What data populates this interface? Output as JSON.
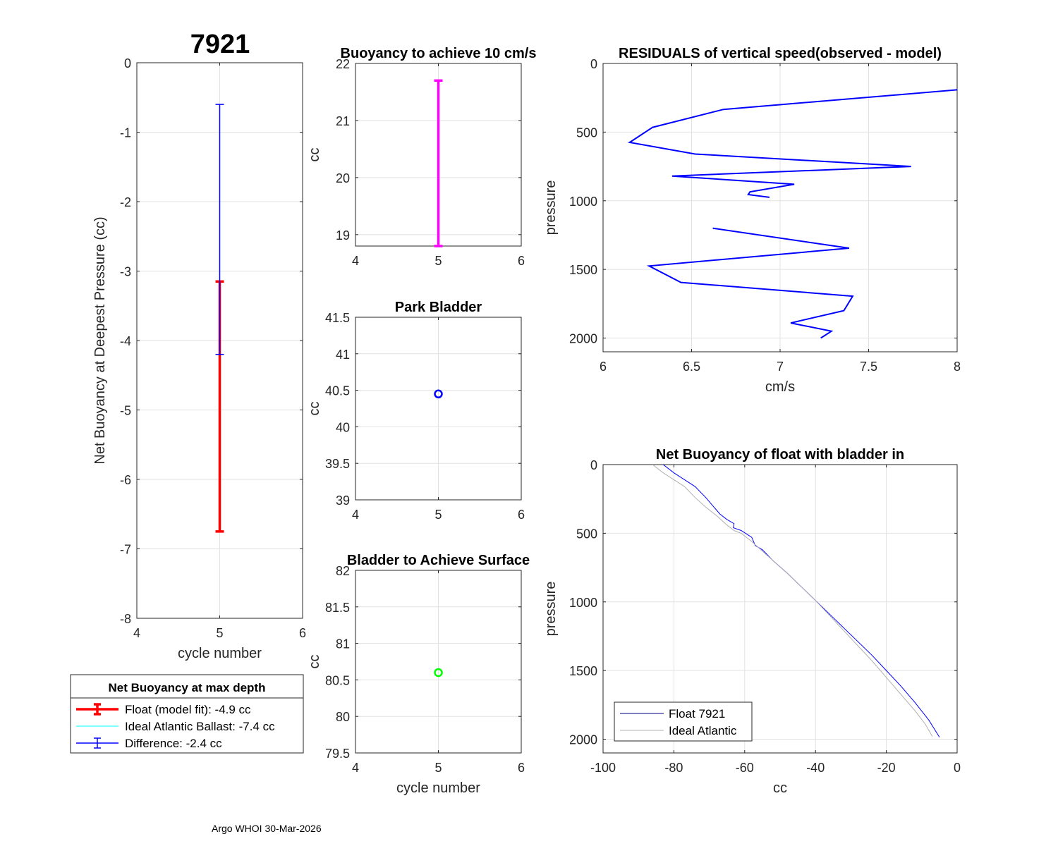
{
  "figure_title": "7921",
  "footer": "Argo WHOI 30-Mar-2026",
  "colors": {
    "red": "#ff0000",
    "blue": "#0000ff",
    "magenta": "#ff00ff",
    "green": "#00ff00",
    "cyan": "#00ffff",
    "navy": "#000080",
    "gray": "#b0b0b0"
  },
  "chart_data": [
    {
      "id": "net-buoyancy-deepest",
      "type": "errorbar",
      "title": "",
      "xlabel": "cycle number",
      "ylabel": "Net Buoyancy at Deepest Pressure (cc)",
      "xlim": [
        4,
        6
      ],
      "ylim": [
        -8,
        0
      ],
      "xticks": [
        4,
        5,
        6
      ],
      "yticks": [
        0,
        -1,
        -2,
        -3,
        -4,
        -5,
        -6,
        -7,
        -8
      ],
      "xtick_labels": [
        "4",
        "5",
        "6"
      ],
      "ytick_labels": [
        "0",
        "-1",
        "-2",
        "-3",
        "-4",
        "-5",
        "-6",
        "-7",
        "-8"
      ],
      "series": [
        {
          "name": "Float (model fit)",
          "x": 5,
          "y": -4.95,
          "low": -6.75,
          "high": -3.15,
          "color": "#ff0000"
        },
        {
          "name": "Difference",
          "x": 5,
          "y": -2.4,
          "low": -4.2,
          "high": -0.6,
          "color": "#0000ff"
        }
      ],
      "legend": {
        "title": "Net Buoyancy at max depth",
        "entries": [
          "Float (model fit):  -4.9 cc",
          "Ideal Atlantic Ballast:  -7.4 cc",
          "Difference:  -2.4 cc"
        ]
      }
    },
    {
      "id": "buoyancy-10cms",
      "type": "errorbar",
      "title": "Buoyancy to achieve 10 cm/s",
      "xlabel": "",
      "ylabel": "cc",
      "xlim": [
        4,
        6
      ],
      "ylim": [
        18.8,
        22
      ],
      "xticks": [
        4,
        5,
        6
      ],
      "yticks": [
        19,
        20,
        21,
        22
      ],
      "xtick_labels": [
        "4",
        "5",
        "6"
      ],
      "ytick_labels": [
        "19",
        "20",
        "21",
        "22"
      ],
      "series": [
        {
          "name": "buoyancy",
          "x": 5,
          "low": 18.8,
          "high": 21.7,
          "color": "#ff00ff"
        }
      ]
    },
    {
      "id": "park-bladder",
      "type": "scatter",
      "title": "Park Bladder",
      "xlabel": "",
      "ylabel": "cc",
      "xlim": [
        4,
        6
      ],
      "ylim": [
        39,
        41.5
      ],
      "xticks": [
        4,
        5,
        6
      ],
      "yticks": [
        39,
        39.5,
        40,
        40.5,
        41,
        41.5
      ],
      "xtick_labels": [
        "4",
        "5",
        "6"
      ],
      "ytick_labels": [
        "39",
        "39.5",
        "40",
        "40.5",
        "41",
        "41.5"
      ],
      "series": [
        {
          "name": "park bladder",
          "x": [
            5
          ],
          "y": [
            40.45
          ],
          "color": "#0000ff"
        }
      ]
    },
    {
      "id": "bladder-surface",
      "type": "scatter",
      "title": "Bladder to Achieve Surface",
      "xlabel": "cycle number",
      "ylabel": "cc",
      "xlim": [
        4,
        6
      ],
      "ylim": [
        79.5,
        82
      ],
      "xticks": [
        4,
        5,
        6
      ],
      "yticks": [
        79.5,
        80,
        80.5,
        81,
        81.5,
        82
      ],
      "xtick_labels": [
        "4",
        "5",
        "6"
      ],
      "ytick_labels": [
        "79.5",
        "80",
        "80.5",
        "81",
        "81.5",
        "82"
      ],
      "series": [
        {
          "name": "surface bladder",
          "x": [
            5
          ],
          "y": [
            80.6
          ],
          "color": "#00ff00"
        }
      ]
    },
    {
      "id": "residuals",
      "type": "line",
      "title": "RESIDUALS of vertical speed(observed - model)",
      "xlabel": "cm/s",
      "ylabel": "pressure",
      "xlim": [
        6,
        8
      ],
      "ylim": [
        0,
        2100
      ],
      "y_reversed": true,
      "xticks": [
        6,
        6.5,
        7,
        7.5,
        8
      ],
      "yticks": [
        0,
        500,
        1000,
        1500,
        2000
      ],
      "xtick_labels": [
        "6",
        "6.5",
        "7",
        "7.5",
        "8"
      ],
      "ytick_labels": [
        "0",
        "500",
        "1000",
        "1500",
        "2000"
      ],
      "series": [
        {
          "name": "upper",
          "color": "#0000ff",
          "x": [
            8.02,
            6.68,
            6.28,
            6.15,
            6.52,
            7.74,
            6.39,
            7.08,
            6.83,
            6.82,
            6.94
          ],
          "y": [
            190,
            335,
            465,
            575,
            660,
            750,
            820,
            880,
            935,
            955,
            975
          ]
        },
        {
          "name": "lower",
          "color": "#0000ff",
          "x": [
            6.62,
            7.39,
            6.26,
            6.44,
            7.41,
            7.36,
            7.06,
            7.29,
            7.23
          ],
          "y": [
            1200,
            1345,
            1475,
            1595,
            1695,
            1800,
            1890,
            1950,
            2000
          ]
        }
      ]
    },
    {
      "id": "net-buoyancy-profile",
      "type": "line",
      "title": "Net Buoyancy of float with bladder in",
      "xlabel": "cc",
      "ylabel": "pressure",
      "xlim": [
        -100,
        0
      ],
      "ylim": [
        0,
        2100
      ],
      "y_reversed": true,
      "xticks": [
        -100,
        -80,
        -60,
        -40,
        -20,
        0
      ],
      "yticks": [
        0,
        500,
        1000,
        1500,
        2000
      ],
      "xtick_labels": [
        "-100",
        "-80",
        "-60",
        "-40",
        "-20",
        "0"
      ],
      "ytick_labels": [
        "0",
        "500",
        "1000",
        "1500",
        "2000"
      ],
      "legend": {
        "entries": [
          "Float 7921",
          "Ideal Atlantic"
        ]
      },
      "series": [
        {
          "name": "Float 7921",
          "color": "#0000ff",
          "x": [
            -83,
            -80,
            -77,
            -74,
            -71,
            -69,
            -67,
            -65,
            -63,
            -63.2,
            -61,
            -58,
            -57,
            -55,
            -52,
            -48,
            -44,
            -40,
            -36,
            -32,
            -28,
            -24,
            -20,
            -16,
            -12,
            -8,
            -5
          ],
          "y": [
            0,
            60,
            110,
            160,
            240,
            300,
            360,
            400,
            430,
            460,
            480,
            530,
            590,
            620,
            700,
            790,
            890,
            990,
            1090,
            1190,
            1290,
            1390,
            1500,
            1610,
            1730,
            1860,
            1985
          ]
        },
        {
          "name": "Ideal Atlantic",
          "color": "#b0b0b0",
          "x": [
            -86,
            -83,
            -80,
            -77,
            -74,
            -71,
            -68,
            -65,
            -63,
            -61,
            -58,
            -55,
            -52,
            -48,
            -44,
            -40,
            -36,
            -32,
            -28,
            -24,
            -20,
            -16,
            -12,
            -9,
            -7
          ],
          "y": [
            0,
            60,
            110,
            160,
            240,
            310,
            370,
            440,
            480,
            500,
            560,
            630,
            700,
            790,
            890,
            990,
            1100,
            1210,
            1320,
            1430,
            1550,
            1670,
            1790,
            1890,
            1980
          ]
        }
      ]
    }
  ]
}
